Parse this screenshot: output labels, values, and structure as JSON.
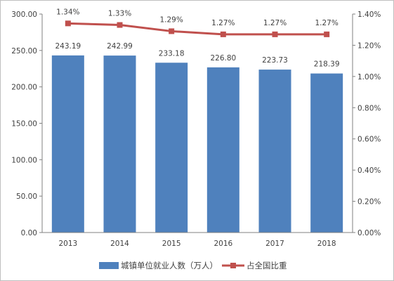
{
  "chart_data": {
    "type": "bar",
    "categories": [
      "2013",
      "2014",
      "2015",
      "2016",
      "2017",
      "2018"
    ],
    "series": [
      {
        "name": "城镇单位就业人数（万人）",
        "type": "bar",
        "axis": "left",
        "color": "#4f81bd",
        "values": [
          243.19,
          242.99,
          233.18,
          226.8,
          223.73,
          218.39
        ],
        "labels": [
          "243.19",
          "242.99",
          "233.18",
          "226.80",
          "223.73",
          "218.39"
        ]
      },
      {
        "name": "占全国比重",
        "type": "line",
        "axis": "right",
        "color": "#c0504d",
        "values": [
          1.34,
          1.33,
          1.29,
          1.27,
          1.27,
          1.27
        ],
        "labels": [
          "1.34%",
          "1.33%",
          "1.29%",
          "1.27%",
          "1.27%",
          "1.27%"
        ]
      }
    ],
    "y_left": {
      "range": [
        0,
        300
      ],
      "ticks": [
        "0.00",
        "50.00",
        "100.00",
        "150.00",
        "200.00",
        "250.00",
        "300.00"
      ]
    },
    "y_right": {
      "range": [
        0,
        1.4
      ],
      "ticks": [
        "0.00%",
        "0.20%",
        "0.40%",
        "0.60%",
        "0.80%",
        "1.00%",
        "1.20%",
        "1.40%"
      ]
    },
    "grid": false,
    "legend_position": "bottom"
  }
}
